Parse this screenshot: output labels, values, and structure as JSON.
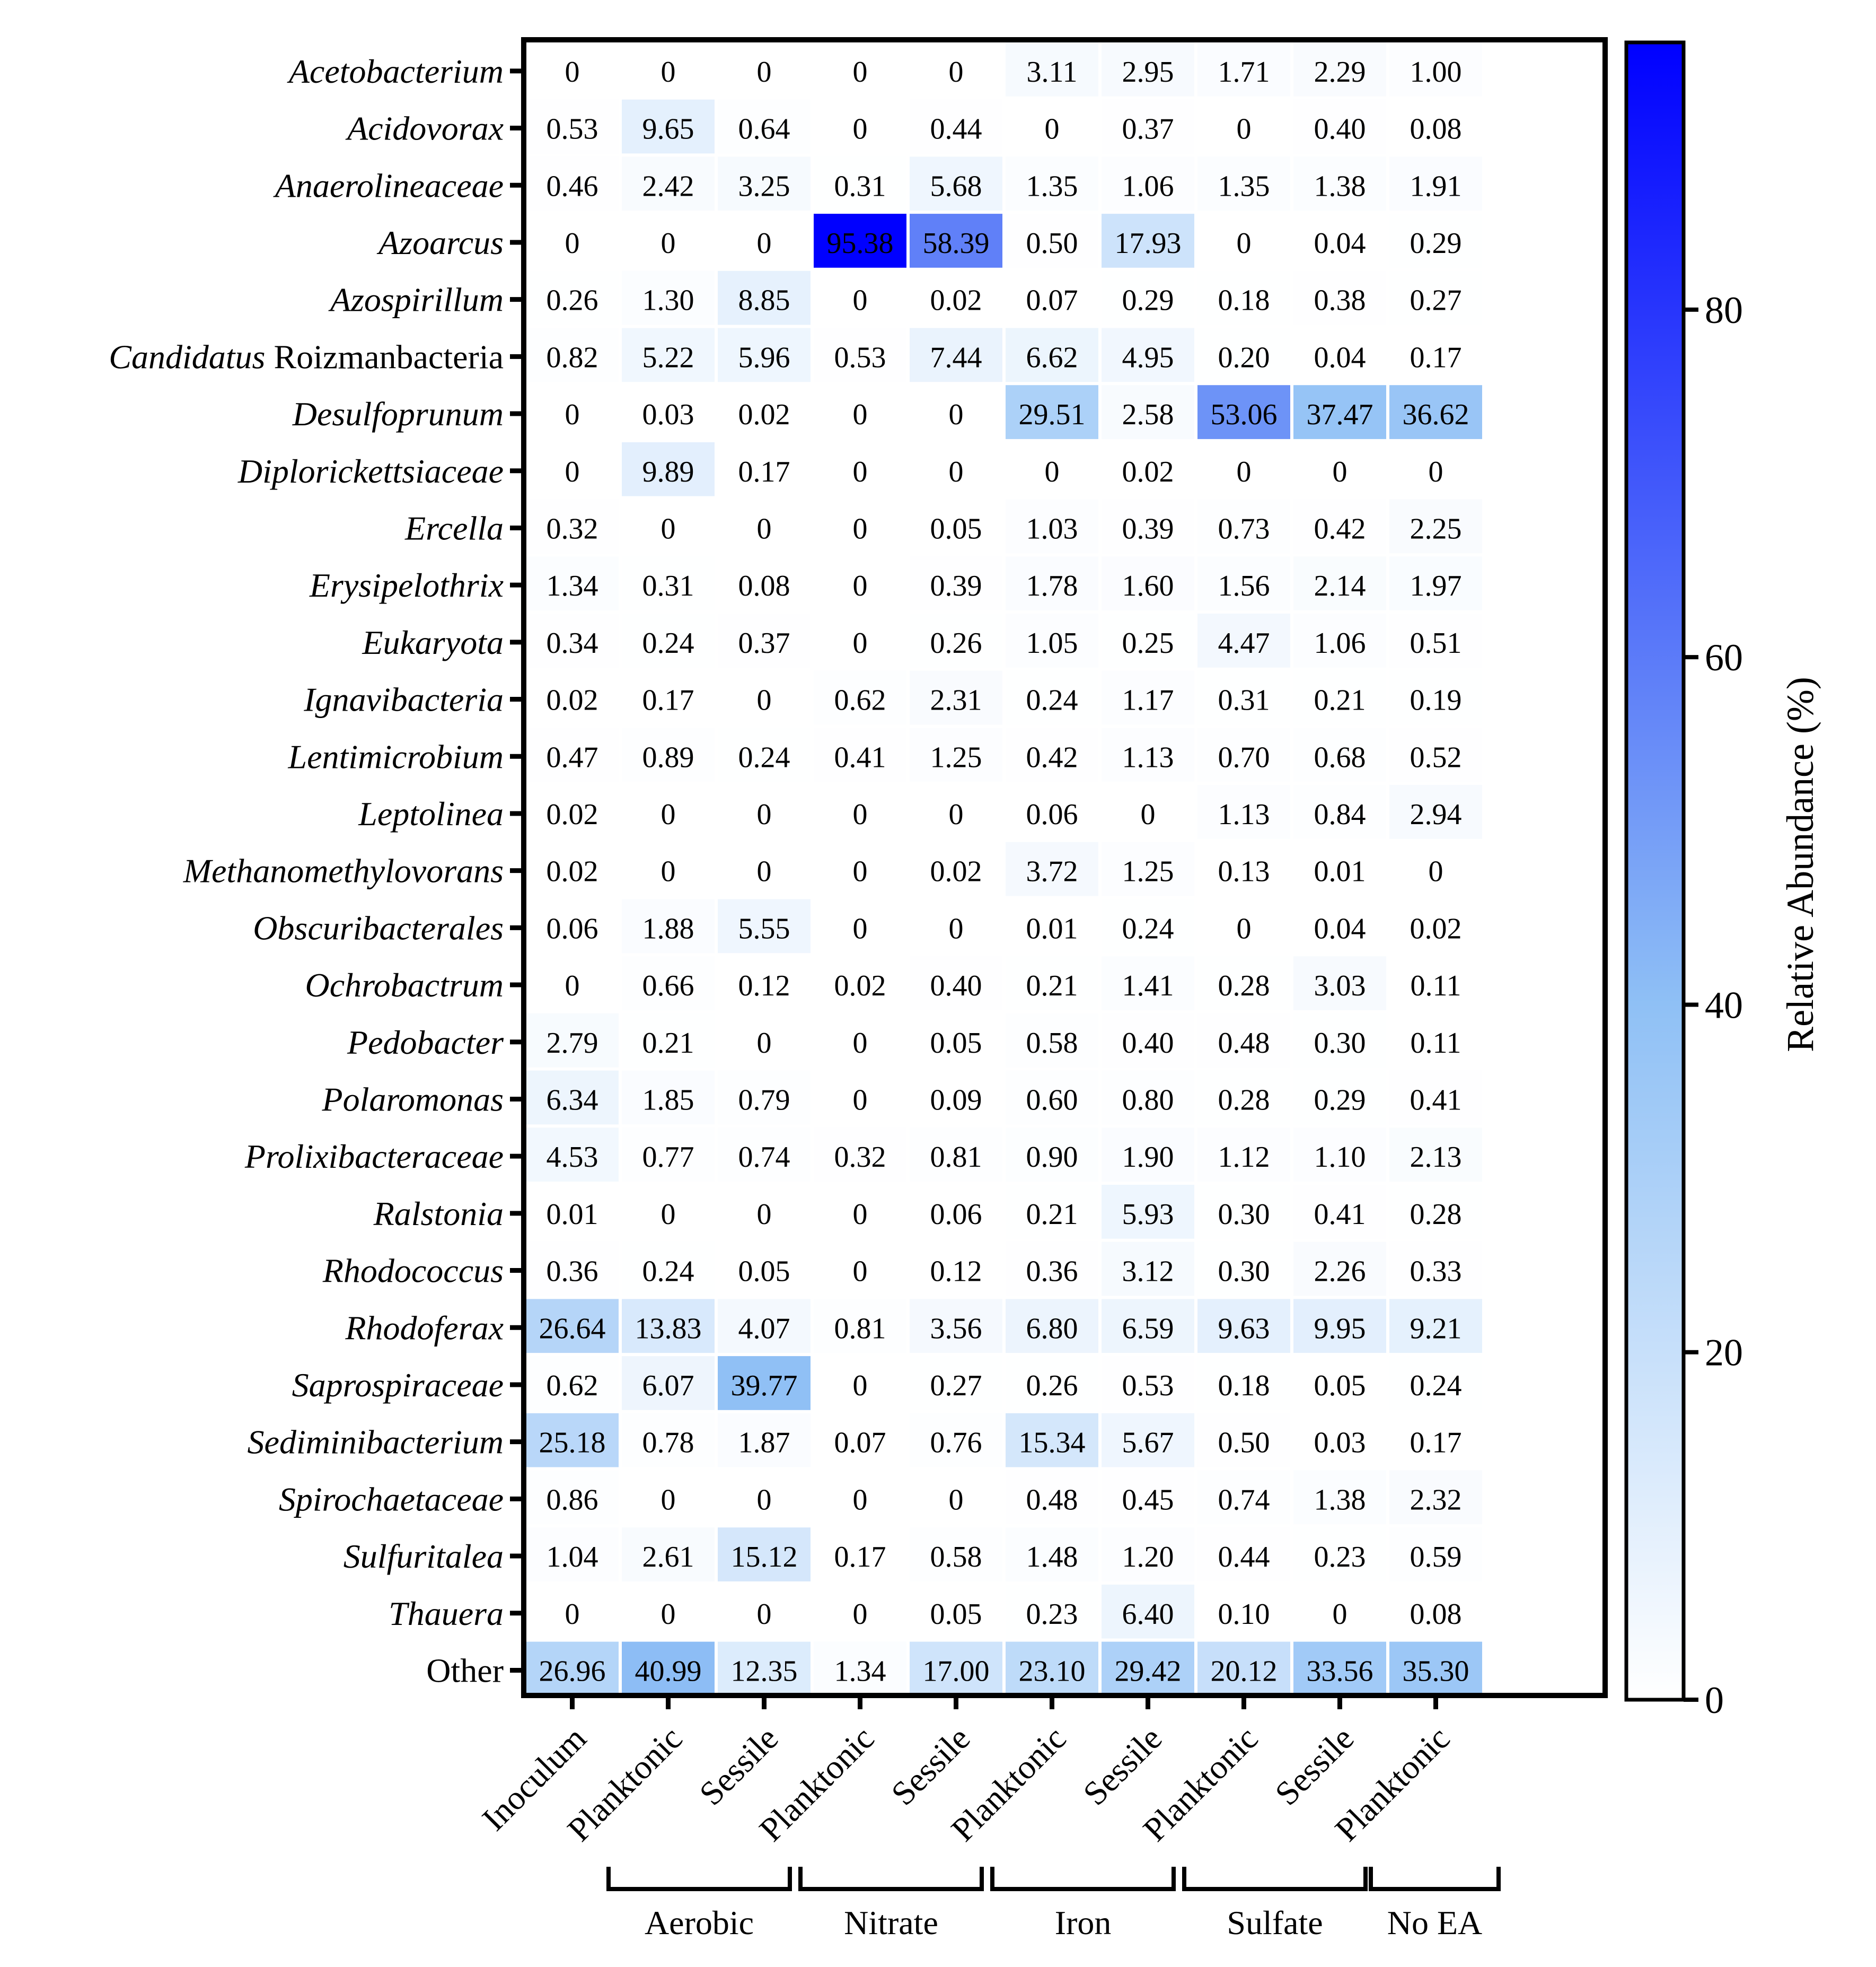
{
  "chart_data": {
    "type": "heatmap",
    "title": "",
    "value_range": [
      0,
      95.38
    ],
    "colorbar": {
      "title": "Relative Abundance (%)",
      "ticks": [
        0,
        20,
        40,
        60,
        80
      ],
      "range": [
        0,
        95.38
      ],
      "color_low": "#ffffff",
      "color_mid": "#8fc0f5",
      "color_high": "#0000ff"
    },
    "columns": [
      "Inoculum",
      "Planktonic",
      "Sessile",
      "Planktonic",
      "Sessile",
      "Planktonic",
      "Sessile",
      "Planktonic",
      "Sessile",
      "Planktonic"
    ],
    "groups": [
      {
        "label": "Aerobic",
        "columns": [
          1,
          2
        ]
      },
      {
        "label": "Nitrate",
        "columns": [
          3,
          4
        ]
      },
      {
        "label": "Iron",
        "columns": [
          5,
          6
        ]
      },
      {
        "label": "Sulfate",
        "columns": [
          7,
          8
        ]
      },
      {
        "label": "No EA",
        "columns": [
          9
        ]
      }
    ],
    "rows": [
      {
        "label": "Acetobacterium",
        "prefix": "",
        "italic": true,
        "values": [
          "0",
          "0",
          "0",
          "0",
          "0",
          "3.11",
          "2.95",
          "1.71",
          "2.29",
          "1.00"
        ]
      },
      {
        "label": "Acidovorax",
        "prefix": "",
        "italic": true,
        "values": [
          "0.53",
          "9.65",
          "0.64",
          "0",
          "0.44",
          "0",
          "0.37",
          "0",
          "0.40",
          "0.08"
        ]
      },
      {
        "label": "Anaerolineaceae",
        "prefix": "",
        "italic": true,
        "values": [
          "0.46",
          "2.42",
          "3.25",
          "0.31",
          "5.68",
          "1.35",
          "1.06",
          "1.35",
          "1.38",
          "1.91"
        ]
      },
      {
        "label": "Azoarcus",
        "prefix": "",
        "italic": true,
        "values": [
          "0",
          "0",
          "0",
          "95.38",
          "58.39",
          "0.50",
          "17.93",
          "0",
          "0.04",
          "0.29"
        ]
      },
      {
        "label": "Azospirillum",
        "prefix": "",
        "italic": true,
        "values": [
          "0.26",
          "1.30",
          "8.85",
          "0",
          "0.02",
          "0.07",
          "0.29",
          "0.18",
          "0.38",
          "0.27"
        ]
      },
      {
        "label": "Roizmanbacteria",
        "prefix": "Candidatus",
        "italic": false,
        "values": [
          "0.82",
          "5.22",
          "5.96",
          "0.53",
          "7.44",
          "6.62",
          "4.95",
          "0.20",
          "0.04",
          "0.17"
        ]
      },
      {
        "label": "Desulfoprunum",
        "prefix": "",
        "italic": true,
        "values": [
          "0",
          "0.03",
          "0.02",
          "0",
          "0",
          "29.51",
          "2.58",
          "53.06",
          "37.47",
          "36.62"
        ]
      },
      {
        "label": "Diplorickettsiaceae",
        "prefix": "",
        "italic": true,
        "values": [
          "0",
          "9.89",
          "0.17",
          "0",
          "0",
          "0",
          "0.02",
          "0",
          "0",
          "0"
        ]
      },
      {
        "label": "Ercella",
        "prefix": "",
        "italic": true,
        "values": [
          "0.32",
          "0",
          "0",
          "0",
          "0.05",
          "1.03",
          "0.39",
          "0.73",
          "0.42",
          "2.25"
        ]
      },
      {
        "label": "Erysipelothrix",
        "prefix": "",
        "italic": true,
        "values": [
          "1.34",
          "0.31",
          "0.08",
          "0",
          "0.39",
          "1.78",
          "1.60",
          "1.56",
          "2.14",
          "1.97"
        ]
      },
      {
        "label": "Eukaryota",
        "prefix": "",
        "italic": true,
        "values": [
          "0.34",
          "0.24",
          "0.37",
          "0",
          "0.26",
          "1.05",
          "0.25",
          "4.47",
          "1.06",
          "0.51"
        ]
      },
      {
        "label": "Ignavibacteria",
        "prefix": "",
        "italic": true,
        "values": [
          "0.02",
          "0.17",
          "0",
          "0.62",
          "2.31",
          "0.24",
          "1.17",
          "0.31",
          "0.21",
          "0.19"
        ]
      },
      {
        "label": "Lentimicrobium",
        "prefix": "",
        "italic": true,
        "values": [
          "0.47",
          "0.89",
          "0.24",
          "0.41",
          "1.25",
          "0.42",
          "1.13",
          "0.70",
          "0.68",
          "0.52"
        ]
      },
      {
        "label": "Leptolinea",
        "prefix": "",
        "italic": true,
        "values": [
          "0.02",
          "0",
          "0",
          "0",
          "0",
          "0.06",
          "0",
          "1.13",
          "0.84",
          "2.94"
        ]
      },
      {
        "label": "Methanomethylovorans",
        "prefix": "",
        "italic": true,
        "values": [
          "0.02",
          "0",
          "0",
          "0",
          "0.02",
          "3.72",
          "1.25",
          "0.13",
          "0.01",
          "0"
        ]
      },
      {
        "label": "Obscuribacterales",
        "prefix": "",
        "italic": true,
        "values": [
          "0.06",
          "1.88",
          "5.55",
          "0",
          "0",
          "0.01",
          "0.24",
          "0",
          "0.04",
          "0.02"
        ]
      },
      {
        "label": "Ochrobactrum",
        "prefix": "",
        "italic": true,
        "values": [
          "0",
          "0.66",
          "0.12",
          "0.02",
          "0.40",
          "0.21",
          "1.41",
          "0.28",
          "3.03",
          "0.11"
        ]
      },
      {
        "label": "Pedobacter",
        "prefix": "",
        "italic": true,
        "values": [
          "2.79",
          "0.21",
          "0",
          "0",
          "0.05",
          "0.58",
          "0.40",
          "0.48",
          "0.30",
          "0.11"
        ]
      },
      {
        "label": "Polaromonas",
        "prefix": "",
        "italic": true,
        "values": [
          "6.34",
          "1.85",
          "0.79",
          "0",
          "0.09",
          "0.60",
          "0.80",
          "0.28",
          "0.29",
          "0.41"
        ]
      },
      {
        "label": "Prolixibacteraceae",
        "prefix": "",
        "italic": true,
        "values": [
          "4.53",
          "0.77",
          "0.74",
          "0.32",
          "0.81",
          "0.90",
          "1.90",
          "1.12",
          "1.10",
          "2.13"
        ]
      },
      {
        "label": "Ralstonia",
        "prefix": "",
        "italic": true,
        "values": [
          "0.01",
          "0",
          "0",
          "0",
          "0.06",
          "0.21",
          "5.93",
          "0.30",
          "0.41",
          "0.28"
        ]
      },
      {
        "label": "Rhodococcus",
        "prefix": "",
        "italic": true,
        "values": [
          "0.36",
          "0.24",
          "0.05",
          "0",
          "0.12",
          "0.36",
          "3.12",
          "0.30",
          "2.26",
          "0.33"
        ]
      },
      {
        "label": "Rhodoferax",
        "prefix": "",
        "italic": true,
        "values": [
          "26.64",
          "13.83",
          "4.07",
          "0.81",
          "3.56",
          "6.80",
          "6.59",
          "9.63",
          "9.95",
          "9.21"
        ]
      },
      {
        "label": "Saprospiraceae",
        "prefix": "",
        "italic": true,
        "values": [
          "0.62",
          "6.07",
          "39.77",
          "0",
          "0.27",
          "0.26",
          "0.53",
          "0.18",
          "0.05",
          "0.24"
        ]
      },
      {
        "label": "Sediminibacterium",
        "prefix": "",
        "italic": true,
        "values": [
          "25.18",
          "0.78",
          "1.87",
          "0.07",
          "0.76",
          "15.34",
          "5.67",
          "0.50",
          "0.03",
          "0.17"
        ]
      },
      {
        "label": "Spirochaetaceae",
        "prefix": "",
        "italic": true,
        "values": [
          "0.86",
          "0",
          "0",
          "0",
          "0",
          "0.48",
          "0.45",
          "0.74",
          "1.38",
          "2.32"
        ]
      },
      {
        "label": "Sulfuritalea",
        "prefix": "",
        "italic": true,
        "values": [
          "1.04",
          "2.61",
          "15.12",
          "0.17",
          "0.58",
          "1.48",
          "1.20",
          "0.44",
          "0.23",
          "0.59"
        ]
      },
      {
        "label": "Thauera",
        "prefix": "",
        "italic": true,
        "values": [
          "0",
          "0",
          "0",
          "0",
          "0.05",
          "0.23",
          "6.40",
          "0.10",
          "0",
          "0.08"
        ]
      },
      {
        "label": "Other",
        "prefix": "",
        "italic": false,
        "values": [
          "26.96",
          "40.99",
          "12.35",
          "1.34",
          "17.00",
          "23.10",
          "29.42",
          "20.12",
          "33.56",
          "35.30"
        ]
      }
    ]
  }
}
